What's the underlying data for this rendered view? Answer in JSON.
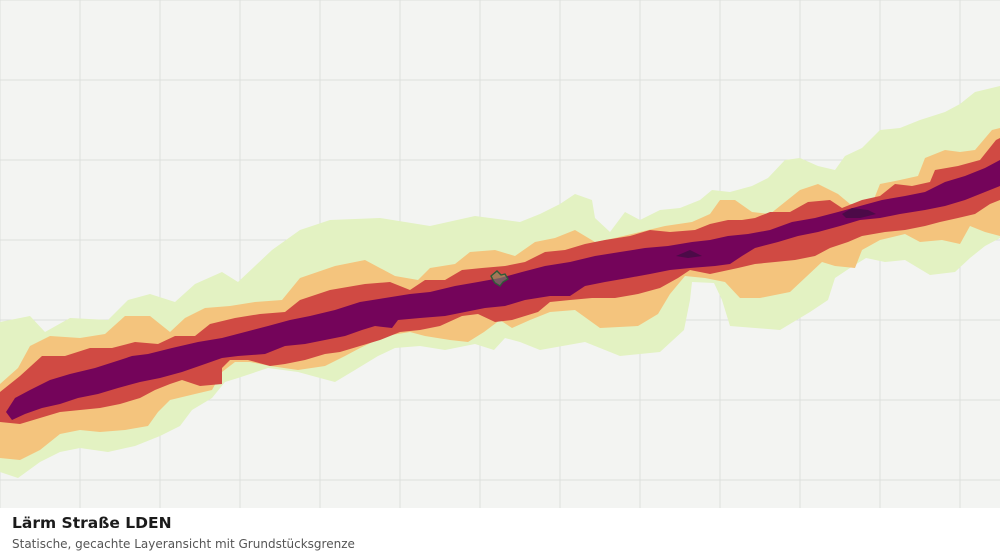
{
  "caption": {
    "title": "Lärm Straße LDEN",
    "subtitle": "Statische, gecachte Layeransicht mit Grundstücksgrenze"
  },
  "map": {
    "background_color": "#f3f4f2",
    "grid_color": "#dddfdc",
    "noise_classes": [
      {
        "name": "class-lowest",
        "color": "#e3f2c2"
      },
      {
        "name": "class-low",
        "color": "#f4c47d"
      },
      {
        "name": "class-medium",
        "color": "#d04a43"
      },
      {
        "name": "class-high",
        "color": "#74045a"
      },
      {
        "name": "class-highest",
        "color": "#4c0a48"
      }
    ],
    "parcel_boundary": {
      "stroke": "#2e5c38",
      "fill": "#7f9e6a"
    }
  }
}
